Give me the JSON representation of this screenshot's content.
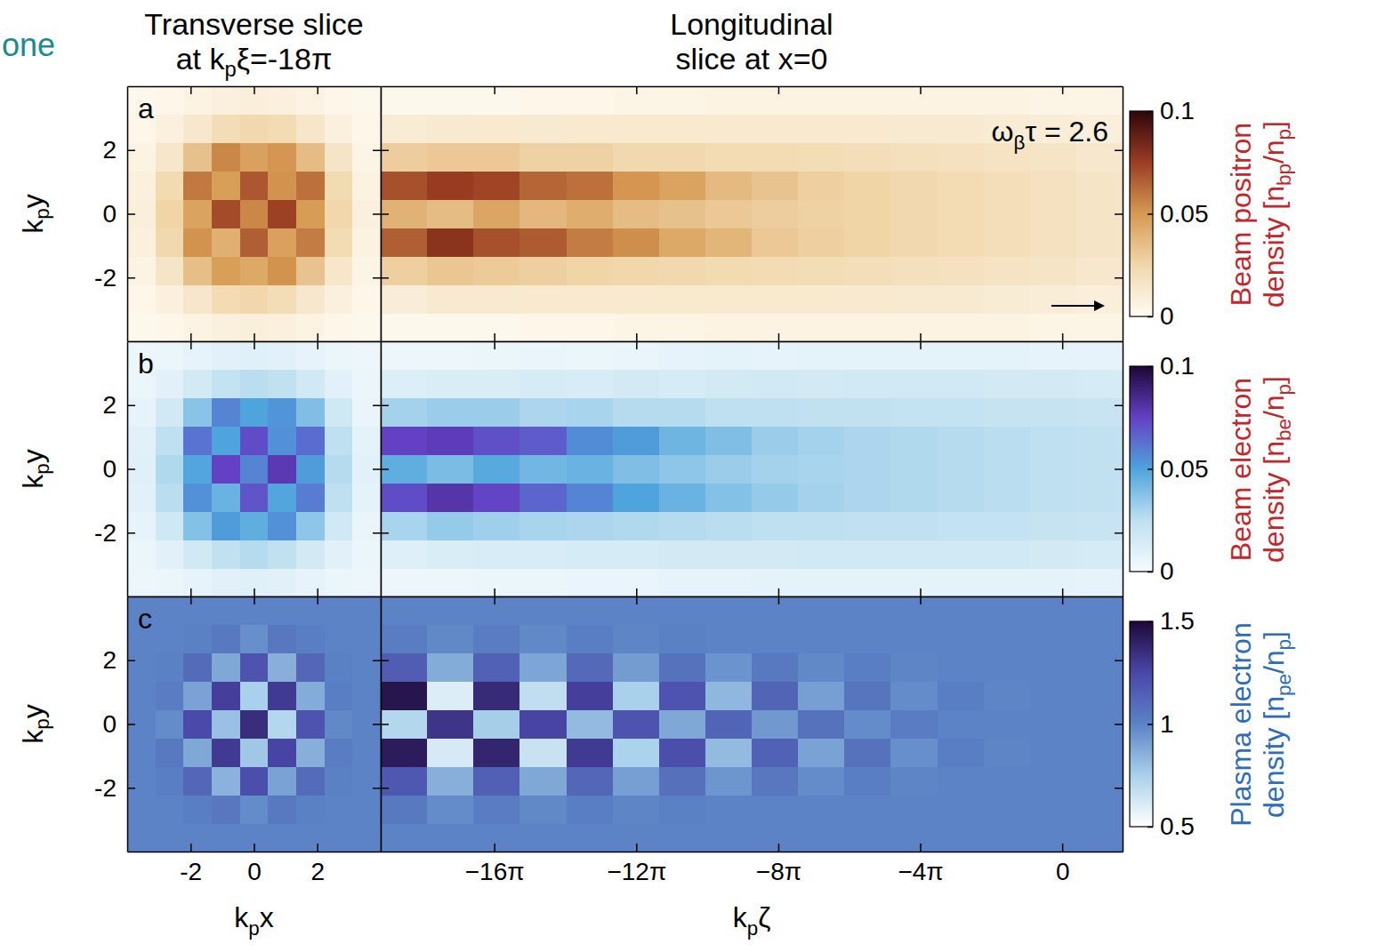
{
  "header": {
    "fragment": "one",
    "transverse_title": "Transverse slice at kpξ=-18π",
    "longitudinal_title": "Longitudinal slice at x=0"
  },
  "chart_data": [
    {
      "type": "heatmap",
      "panel_label": "a",
      "y_label": "kpy",
      "tick_labels": "y",
      "xlim": [
        -4,
        4
      ],
      "ylim": [
        -4,
        4
      ],
      "xticks": [
        -2,
        0,
        2
      ],
      "yticks": [
        -2,
        0,
        2
      ],
      "x_edges": [
        -4,
        -3.111,
        -2.222,
        -1.333,
        -0.444,
        0.444,
        1.333,
        2.222,
        3.111,
        4
      ],
      "y_edges": [
        -4,
        -3.111,
        -2.222,
        -1.333,
        -0.444,
        0.444,
        1.333,
        2.222,
        3.111,
        4
      ],
      "values": [
        [
          0.003,
          0.004,
          0.006,
          0.008,
          0.009,
          0.008,
          0.006,
          0.004,
          0.003
        ],
        [
          0.004,
          0.008,
          0.015,
          0.022,
          0.025,
          0.021,
          0.014,
          0.008,
          0.004
        ],
        [
          0.006,
          0.016,
          0.035,
          0.048,
          0.044,
          0.052,
          0.033,
          0.015,
          0.005
        ],
        [
          0.008,
          0.024,
          0.052,
          0.041,
          0.066,
          0.047,
          0.058,
          0.022,
          0.007
        ],
        [
          0.009,
          0.026,
          0.046,
          0.071,
          0.055,
          0.074,
          0.049,
          0.025,
          0.008
        ],
        [
          0.008,
          0.023,
          0.059,
          0.048,
          0.068,
          0.052,
          0.061,
          0.023,
          0.007
        ],
        [
          0.006,
          0.015,
          0.034,
          0.055,
          0.047,
          0.051,
          0.036,
          0.016,
          0.005
        ],
        [
          0.004,
          0.008,
          0.014,
          0.021,
          0.024,
          0.022,
          0.015,
          0.008,
          0.004
        ],
        [
          0.003,
          0.004,
          0.006,
          0.008,
          0.009,
          0.008,
          0.006,
          0.004,
          0.003
        ]
      ]
    },
    {
      "type": "heatmap",
      "annotation": "ωβτ = 2.6",
      "tick_labels": false,
      "xlim": [
        -60.32,
        5.34
      ],
      "ylim": [
        -4,
        4
      ],
      "xticks": [
        {
          "value": -50.27,
          "label": "−16π"
        },
        {
          "value": -37.7,
          "label": "−12π"
        },
        {
          "value": -25.13,
          "label": "−8π"
        },
        {
          "value": -12.57,
          "label": "−4π"
        },
        0
      ],
      "yticks": [
        -2,
        0,
        2
      ],
      "x_edges": [
        -60.32,
        -56.22,
        -52.11,
        -48.01,
        -43.9,
        -39.8,
        -35.7,
        -31.59,
        -27.49,
        -23.38,
        -19.28,
        -15.18,
        -11.07,
        -6.97,
        -2.86,
        1.24,
        5.34
      ],
      "y_edges": [
        -4,
        -3.111,
        -2.222,
        -1.333,
        -0.444,
        0.444,
        1.333,
        2.222,
        3.111,
        4
      ],
      "values": [
        [
          0.003,
          0.003,
          0.003,
          0.004,
          0.004,
          0.005,
          0.005,
          0.006,
          0.006,
          0.006,
          0.006,
          0.006,
          0.006,
          0.006,
          0.005,
          0.005
        ],
        [
          0.01,
          0.012,
          0.012,
          0.013,
          0.013,
          0.013,
          0.013,
          0.013,
          0.013,
          0.013,
          0.013,
          0.012,
          0.012,
          0.011,
          0.01,
          0.009
        ],
        [
          0.028,
          0.032,
          0.03,
          0.028,
          0.026,
          0.025,
          0.024,
          0.023,
          0.022,
          0.021,
          0.02,
          0.019,
          0.018,
          0.017,
          0.016,
          0.014
        ],
        [
          0.066,
          0.079,
          0.07,
          0.067,
          0.058,
          0.053,
          0.044,
          0.039,
          0.031,
          0.028,
          0.026,
          0.024,
          0.022,
          0.02,
          0.018,
          0.016
        ],
        [
          0.04,
          0.036,
          0.045,
          0.038,
          0.042,
          0.036,
          0.034,
          0.031,
          0.029,
          0.027,
          0.026,
          0.024,
          0.022,
          0.02,
          0.018,
          0.016
        ],
        [
          0.07,
          0.076,
          0.073,
          0.064,
          0.061,
          0.051,
          0.046,
          0.037,
          0.033,
          0.028,
          0.026,
          0.024,
          0.022,
          0.02,
          0.018,
          0.016
        ],
        [
          0.029,
          0.031,
          0.031,
          0.027,
          0.027,
          0.024,
          0.024,
          0.022,
          0.022,
          0.021,
          0.02,
          0.019,
          0.018,
          0.017,
          0.016,
          0.014
        ],
        [
          0.011,
          0.012,
          0.013,
          0.012,
          0.013,
          0.013,
          0.013,
          0.013,
          0.013,
          0.013,
          0.013,
          0.012,
          0.012,
          0.011,
          0.01,
          0.009
        ],
        [
          0.003,
          0.003,
          0.003,
          0.004,
          0.004,
          0.005,
          0.005,
          0.006,
          0.006,
          0.006,
          0.006,
          0.006,
          0.006,
          0.006,
          0.005,
          0.005
        ]
      ],
      "colorbar": {
        "label": "Beam positron density [nbp/np]",
        "range": [
          0,
          0.1
        ],
        "ticks": [
          0,
          0.05,
          0.1
        ]
      }
    },
    {
      "type": "heatmap",
      "panel_label": "b",
      "y_label": "kpy",
      "tick_labels": "y",
      "xlim": [
        -4,
        4
      ],
      "ylim": [
        -4,
        4
      ],
      "xticks": [
        -2,
        0,
        2
      ],
      "yticks": [
        -2,
        0,
        2
      ],
      "x_edges": [
        -4,
        -3.111,
        -2.222,
        -1.333,
        -0.444,
        0.444,
        1.333,
        2.222,
        3.111,
        4
      ],
      "y_edges": [
        -4,
        -3.111,
        -2.222,
        -1.333,
        -0.444,
        0.444,
        1.333,
        2.222,
        3.111,
        4
      ],
      "values": [
        [
          0.004,
          0.005,
          0.007,
          0.009,
          0.01,
          0.009,
          0.007,
          0.005,
          0.004
        ],
        [
          0.005,
          0.009,
          0.017,
          0.024,
          0.027,
          0.024,
          0.016,
          0.009,
          0.005
        ],
        [
          0.007,
          0.018,
          0.038,
          0.052,
          0.046,
          0.055,
          0.036,
          0.017,
          0.006
        ],
        [
          0.009,
          0.026,
          0.055,
          0.044,
          0.07,
          0.049,
          0.06,
          0.025,
          0.008
        ],
        [
          0.01,
          0.028,
          0.049,
          0.075,
          0.058,
          0.078,
          0.052,
          0.027,
          0.009
        ],
        [
          0.009,
          0.025,
          0.062,
          0.05,
          0.072,
          0.055,
          0.064,
          0.025,
          0.008
        ],
        [
          0.007,
          0.017,
          0.037,
          0.058,
          0.05,
          0.054,
          0.039,
          0.018,
          0.006
        ],
        [
          0.005,
          0.009,
          0.016,
          0.023,
          0.026,
          0.024,
          0.017,
          0.009,
          0.005
        ],
        [
          0.004,
          0.005,
          0.007,
          0.009,
          0.01,
          0.009,
          0.007,
          0.005,
          0.004
        ]
      ]
    },
    {
      "type": "heatmap",
      "tick_labels": false,
      "xlim": [
        -60.32,
        5.34
      ],
      "ylim": [
        -4,
        4
      ],
      "xticks": [
        {
          "value": -50.27,
          "label": "−16π"
        },
        {
          "value": -37.7,
          "label": "−12π"
        },
        {
          "value": -25.13,
          "label": "−8π"
        },
        {
          "value": -12.57,
          "label": "−4π"
        },
        0
      ],
      "yticks": [
        -2,
        0,
        2
      ],
      "x_edges": [
        -60.32,
        -56.22,
        -52.11,
        -48.01,
        -43.9,
        -39.8,
        -35.7,
        -31.59,
        -27.49,
        -23.38,
        -19.28,
        -15.18,
        -11.07,
        -6.97,
        -2.86,
        1.24,
        5.34
      ],
      "y_edges": [
        -4,
        -3.111,
        -2.222,
        -1.333,
        -0.444,
        0.444,
        1.333,
        2.222,
        3.111,
        4
      ],
      "values": [
        [
          0.004,
          0.004,
          0.005,
          0.005,
          0.006,
          0.006,
          0.007,
          0.007,
          0.008,
          0.008,
          0.008,
          0.008,
          0.008,
          0.008,
          0.008,
          0.007
        ],
        [
          0.011,
          0.013,
          0.014,
          0.014,
          0.015,
          0.015,
          0.016,
          0.016,
          0.016,
          0.017,
          0.017,
          0.017,
          0.017,
          0.017,
          0.016,
          0.015
        ],
        [
          0.03,
          0.034,
          0.032,
          0.03,
          0.029,
          0.028,
          0.027,
          0.026,
          0.025,
          0.025,
          0.024,
          0.024,
          0.023,
          0.023,
          0.022,
          0.021
        ],
        [
          0.072,
          0.08,
          0.074,
          0.066,
          0.058,
          0.05,
          0.044,
          0.038,
          0.034,
          0.031,
          0.029,
          0.028,
          0.027,
          0.026,
          0.025,
          0.024
        ],
        [
          0.046,
          0.04,
          0.048,
          0.042,
          0.044,
          0.039,
          0.036,
          0.033,
          0.031,
          0.03,
          0.029,
          0.028,
          0.027,
          0.026,
          0.025,
          0.024
        ],
        [
          0.075,
          0.077,
          0.071,
          0.068,
          0.056,
          0.052,
          0.043,
          0.039,
          0.033,
          0.031,
          0.029,
          0.028,
          0.027,
          0.026,
          0.025,
          0.024
        ],
        [
          0.031,
          0.033,
          0.033,
          0.029,
          0.03,
          0.027,
          0.027,
          0.025,
          0.025,
          0.024,
          0.024,
          0.023,
          0.023,
          0.022,
          0.022,
          0.021
        ],
        [
          0.012,
          0.013,
          0.013,
          0.015,
          0.014,
          0.016,
          0.015,
          0.016,
          0.017,
          0.016,
          0.017,
          0.017,
          0.017,
          0.016,
          0.016,
          0.015
        ],
        [
          0.004,
          0.004,
          0.005,
          0.006,
          0.005,
          0.006,
          0.007,
          0.008,
          0.007,
          0.008,
          0.008,
          0.008,
          0.008,
          0.008,
          0.007,
          0.007
        ]
      ],
      "colorbar": {
        "label": "Beam electron density [nbe/np]",
        "range": [
          0,
          0.1
        ],
        "ticks": [
          0,
          0.05,
          0.1
        ]
      }
    },
    {
      "type": "heatmap",
      "panel_label": "c",
      "y_label": "kpy",
      "x_label": "kpx",
      "tick_labels": true,
      "xlim": [
        -4,
        4
      ],
      "ylim": [
        -4,
        4
      ],
      "xticks": [
        -2,
        0,
        2
      ],
      "yticks": [
        -2,
        0,
        2
      ],
      "x_edges": [
        -4,
        -3.111,
        -2.222,
        -1.333,
        -0.444,
        0.444,
        1.333,
        2.222,
        3.111,
        4
      ],
      "y_edges": [
        -4,
        -3.111,
        -2.222,
        -1.333,
        -0.444,
        0.444,
        1.333,
        2.222,
        3.111,
        4
      ],
      "values": [
        [
          1,
          1,
          1,
          1,
          1,
          1,
          1,
          1,
          1
        ],
        [
          1,
          1,
          1.02,
          1.05,
          0.97,
          1.04,
          1.01,
          1,
          1
        ],
        [
          1,
          1.02,
          1.12,
          0.85,
          1.22,
          0.9,
          1.1,
          1.01,
          1
        ],
        [
          1,
          1.04,
          0.88,
          1.3,
          0.78,
          1.26,
          0.86,
          1.03,
          1
        ],
        [
          1,
          0.97,
          1.24,
          0.8,
          1.35,
          0.72,
          1.2,
          0.98,
          1
        ],
        [
          1,
          1.03,
          0.9,
          1.28,
          0.75,
          1.3,
          0.87,
          1.02,
          1
        ],
        [
          1,
          1.01,
          1.1,
          0.88,
          1.2,
          0.86,
          1.12,
          1.01,
          1
        ],
        [
          1,
          1,
          1.01,
          1.04,
          0.96,
          1.05,
          1.02,
          1,
          1
        ],
        [
          1,
          1,
          1,
          1,
          1,
          1,
          1,
          1,
          1
        ]
      ]
    },
    {
      "type": "heatmap",
      "x_label": "kpζ",
      "tick_labels": "x",
      "xlim": [
        -60.32,
        5.34
      ],
      "ylim": [
        -4,
        4
      ],
      "xticks": [
        {
          "value": -50.27,
          "label": "−16π"
        },
        {
          "value": -37.7,
          "label": "−12π"
        },
        {
          "value": -25.13,
          "label": "−8π"
        },
        {
          "value": -12.57,
          "label": "−4π"
        },
        0
      ],
      "yticks": [
        -2,
        0,
        2
      ],
      "x_edges": [
        -60.32,
        -56.22,
        -52.11,
        -48.01,
        -43.9,
        -39.8,
        -35.7,
        -31.59,
        -27.49,
        -23.38,
        -19.28,
        -15.18,
        -11.07,
        -6.97,
        -2.86,
        1.24,
        5.34
      ],
      "y_edges": [
        -4,
        -3.111,
        -2.222,
        -1.333,
        -0.444,
        0.444,
        1.333,
        2.222,
        3.111,
        4
      ],
      "values": [
        [
          1,
          1,
          1,
          1,
          1,
          1,
          1,
          1,
          1,
          1,
          1,
          1,
          1,
          1,
          1,
          1
        ],
        [
          1.04,
          0.97,
          1.03,
          0.98,
          1.02,
          0.99,
          1.01,
          1,
          1,
          1,
          1,
          1,
          1,
          1,
          1,
          1
        ],
        [
          1.18,
          0.86,
          1.15,
          0.88,
          1.12,
          0.91,
          1.08,
          0.94,
          1.05,
          0.97,
          1.02,
          0.99,
          1,
          1,
          1,
          1
        ],
        [
          1.42,
          0.62,
          1.38,
          0.66,
          1.3,
          0.74,
          1.22,
          0.82,
          1.14,
          0.9,
          1.07,
          0.96,
          1.02,
          0.99,
          1,
          1
        ],
        [
          0.72,
          1.32,
          0.76,
          1.26,
          0.82,
          1.2,
          0.88,
          1.13,
          0.93,
          1.07,
          0.97,
          1.03,
          1,
          1,
          1,
          1
        ],
        [
          1.45,
          0.6,
          1.36,
          0.68,
          1.28,
          0.75,
          1.2,
          0.83,
          1.13,
          0.91,
          1.06,
          0.97,
          1.02,
          0.99,
          1,
          1
        ],
        [
          1.16,
          0.87,
          1.14,
          0.89,
          1.11,
          0.92,
          1.07,
          0.95,
          1.04,
          0.98,
          1.02,
          0.99,
          1,
          1,
          1,
          1
        ],
        [
          1.03,
          0.98,
          1.03,
          0.98,
          1.02,
          0.99,
          1.01,
          1,
          1,
          1,
          1,
          1,
          1,
          1,
          1,
          1
        ],
        [
          1,
          1,
          1,
          1,
          1,
          1,
          1,
          1,
          1,
          1,
          1,
          1,
          1,
          1,
          1,
          1
        ]
      ],
      "colorbar": {
        "label": "Plasma electron density [npe/np]",
        "range": [
          0.5,
          1.5
        ],
        "ticks": [
          0.5,
          1,
          1.5
        ]
      }
    }
  ]
}
